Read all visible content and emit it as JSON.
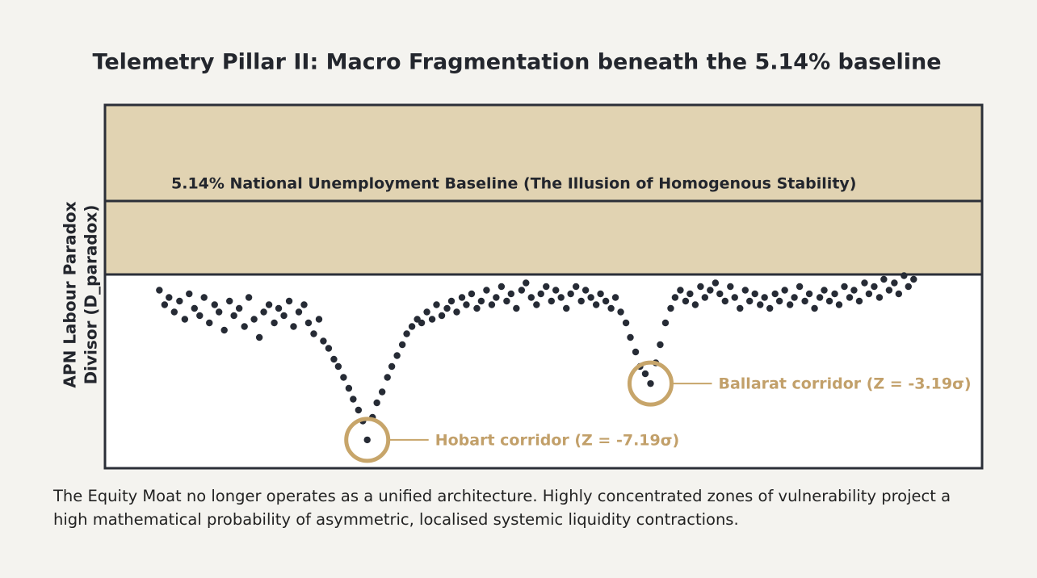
{
  "chart_data": {
    "type": "scatter",
    "title": "Telemetry Pillar II: Macro Fragmentation beneath the 5.14% baseline",
    "band_label": "5.14% National Unemployment Baseline (The Illusion of Homogenous Stability)",
    "y_label": [
      "APN Labour Paradox",
      "Divisor (D_paradox)"
    ],
    "caption": "The Equity Moat no longer operates as a unified architecture. Highly concentrated zones of vulnerability project a high mathematical probability of asymmetric, localised systemic liquidity contractions.",
    "xlim": [
      0,
      100
    ],
    "ylim": [
      0,
      100
    ],
    "color": "#262b35",
    "x": [
      6.2,
      6.8,
      7.3,
      7.9,
      8.5,
      9.1,
      9.6,
      10.2,
      10.8,
      11.3,
      11.9,
      12.5,
      13.0,
      13.6,
      14.2,
      14.7,
      15.3,
      15.9,
      16.4,
      17.0,
      17.6,
      18.1,
      18.7,
      19.3,
      19.8,
      20.4,
      21.0,
      21.5,
      22.1,
      22.7,
      23.2,
      23.8,
      24.4,
      24.9,
      25.5,
      26.1,
      26.6,
      27.2,
      27.8,
      28.3,
      28.9,
      29.4,
      29.9,
      30.5,
      31.0,
      31.6,
      32.2,
      32.7,
      33.3,
      33.9,
      34.4,
      35.0,
      35.6,
      36.1,
      36.7,
      37.3,
      37.8,
      38.4,
      39.0,
      39.5,
      40.1,
      40.7,
      41.2,
      41.8,
      42.4,
      42.9,
      43.5,
      44.1,
      44.6,
      45.2,
      45.8,
      46.3,
      46.9,
      47.5,
      48.0,
      48.6,
      49.2,
      49.7,
      50.3,
      50.9,
      51.4,
      52.0,
      52.6,
      53.1,
      53.7,
      54.3,
      54.8,
      55.4,
      56.0,
      56.5,
      57.1,
      57.7,
      58.2,
      58.8,
      59.4,
      59.9,
      60.5,
      61.0,
      61.6,
      62.2,
      62.8,
      63.3,
      63.9,
      64.5,
      65.0,
      65.6,
      66.2,
      66.7,
      67.3,
      67.9,
      68.4,
      69.0,
      69.6,
      70.1,
      70.7,
      71.3,
      71.8,
      72.4,
      73.0,
      73.5,
      74.1,
      74.7,
      75.2,
      75.8,
      76.4,
      76.9,
      77.5,
      78.1,
      78.6,
      79.2,
      79.8,
      80.3,
      80.9,
      81.5,
      82.0,
      82.6,
      83.2,
      83.7,
      84.3,
      84.9,
      85.4,
      86.0,
      86.6,
      87.1,
      87.7,
      88.3,
      88.8,
      89.4,
      90.0,
      90.5,
      91.1,
      91.6,
      92.2
    ],
    "values": [
      49,
      45,
      47,
      43,
      46,
      41,
      48,
      44,
      42,
      47,
      40,
      45,
      43,
      38,
      46,
      42,
      44,
      39,
      47,
      41,
      36,
      43,
      45,
      40,
      44,
      42,
      46,
      39,
      43,
      45,
      40,
      37,
      41,
      35,
      33,
      30,
      28,
      25,
      22,
      19,
      16,
      13,
      7.8,
      14,
      18,
      21,
      25,
      28,
      31,
      34,
      37,
      39,
      41,
      40,
      43,
      41,
      45,
      42,
      44,
      46,
      43,
      47,
      45,
      48,
      44,
      46,
      49,
      45,
      47,
      50,
      46,
      48,
      44,
      49,
      51,
      47,
      45,
      48,
      50,
      46,
      49,
      47,
      44,
      48,
      50,
      46,
      49,
      47,
      45,
      48,
      46,
      44,
      47,
      43,
      40,
      36,
      32,
      28,
      26,
      23.3,
      29,
      34,
      40,
      44,
      47,
      49,
      46,
      48,
      45,
      50,
      47,
      49,
      51,
      48,
      46,
      50,
      47,
      44,
      49,
      46,
      48,
      45,
      47,
      44,
      48,
      46,
      49,
      45,
      47,
      50,
      46,
      48,
      44,
      47,
      49,
      46,
      48,
      45,
      50,
      47,
      49,
      46,
      51,
      48,
      50,
      47,
      52,
      49,
      51,
      48,
      53,
      50,
      52
    ],
    "annotations": [
      {
        "text": "Hobart corridor (Z = -7.19σ)",
        "x": 29.9,
        "y": 7.8
      },
      {
        "text": "Ballarat corridor (Z = -3.19σ)",
        "x": 62.2,
        "y": 23.3
      }
    ]
  }
}
